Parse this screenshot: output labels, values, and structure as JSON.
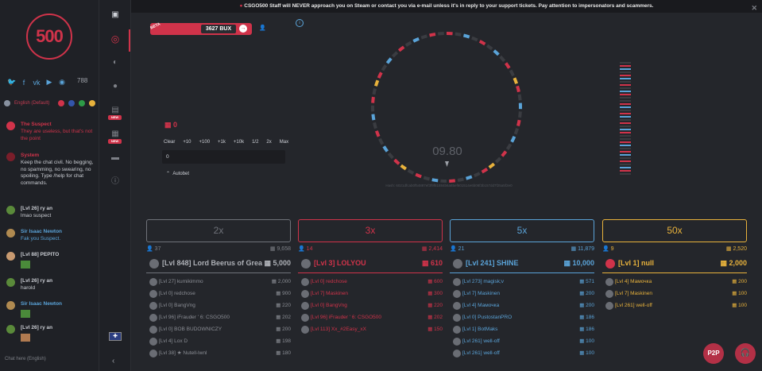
{
  "logo_text": "500",
  "banner": {
    "text": "CSGO500 Staff will NEVER approach you on Steam or contact you via e-mail unless it's in reply to your support tickets. Pay attention to impersonators and scammers."
  },
  "online_count": "788",
  "language": {
    "label": "English (Default)"
  },
  "chat": {
    "messages": [
      {
        "name": "The Suspect",
        "text": "They are useless, but that's not the point"
      },
      {
        "name": "System",
        "text": "Keep the chat civil. No begging, no spamming, no swearing, no spoiling. Type /help for chat commands."
      },
      {
        "name": "[Lvl 26] ry an",
        "text": "lmao suspect"
      },
      {
        "name": "Sir Isaac Newton",
        "text": "Fak you Suspect."
      },
      {
        "name": "[Lvl 88] PEPITO",
        "text": ""
      },
      {
        "name": "[Lvl 26] ry an",
        "text": "harold"
      },
      {
        "name": "Sir Isaac Newton",
        "text": ""
      },
      {
        "name": "[Lvl 26] ry an",
        "text": ""
      }
    ],
    "input_placeholder": "Chat here (English)"
  },
  "sidebar_badges": {
    "new1": "NEW",
    "new2": "NEW"
  },
  "balance": {
    "beta": "BETA",
    "value": "3627 BUX"
  },
  "bet": {
    "amount": "0",
    "buttons": [
      "Clear",
      "+10",
      "+100",
      "+1k",
      "+10k",
      "1/2",
      "2x",
      "Max"
    ],
    "input_value": "0",
    "autobet_label": "Autobet"
  },
  "wheel": {
    "timer": "09.80",
    "hash": "Hash: 6021dfcab0f54887ef3f9f81884b6a85ef601514e6b08f3b157dd7f25a5f2e0"
  },
  "columns": [
    {
      "label": "2x",
      "players": "37",
      "total": "9,658",
      "top_name": "[Lvl 848] Lord Beerus of Grea",
      "top_amount": "5,000",
      "rows": [
        [
          "[Lvl 27] kumikimmo",
          "2,000"
        ],
        [
          "[Lvl 0] redchose",
          "900"
        ],
        [
          "[Lvl 0] BangVng",
          "220"
        ],
        [
          "[Lvl 96] iFrauder ' 6: CSGO500",
          "202"
        ],
        [
          "[Lvl 0] BOB BUDOWNICZY",
          "200"
        ],
        [
          "[Lvl 4] Lox D",
          "198"
        ],
        [
          "[Lvl 38] ★ Nutell-lwnl",
          "180"
        ]
      ]
    },
    {
      "label": "3x",
      "players": "14",
      "total": "2,414",
      "top_name": "[Lvl 3] LOLYOU",
      "top_amount": "610",
      "rows": [
        [
          "[Lvl 0] redchose",
          "600"
        ],
        [
          "[Lvl 7] Maskinen",
          "300"
        ],
        [
          "[Lvl 0] BangVng",
          "220"
        ],
        [
          "[Lvl 96] iFrauder ' 6: CSGO500",
          "202"
        ],
        [
          "[Lvl 113] Xx_#2Easy_xX",
          "150"
        ]
      ]
    },
    {
      "label": "5x",
      "players": "21",
      "total": "11,879",
      "top_name": "[Lvl 241] SHINE",
      "top_amount": "10,000",
      "rows": [
        [
          "[Lvl 273] magisk;v",
          "571"
        ],
        [
          "[Lvl 7] Maskinen",
          "200"
        ],
        [
          "[Lvl 4] Мамочка",
          "200"
        ],
        [
          "[Lvl 0] PustostanPRO",
          "186"
        ],
        [
          "[Lvl 1] BotMaks",
          "186"
        ],
        [
          "[Lvl 261] well-off",
          "100"
        ],
        [
          "[Lvl 261] well-off",
          "100"
        ]
      ]
    },
    {
      "label": "50x",
      "players": "9",
      "total": "2,520",
      "top_name": "[Lvl 1] null",
      "top_amount": "2,000",
      "rows": [
        [
          "[Lvl 4] Мамочка",
          "200"
        ],
        [
          "[Lvl 7] Maskinen",
          "100"
        ],
        [
          "[Lvl 261] well-off",
          "100"
        ]
      ]
    }
  ],
  "buttons": {
    "p2p": "P2P"
  },
  "colors": {
    "red": "#d0334a",
    "blue": "#5aa3d8",
    "gold": "#e8b23c",
    "grey": "#6f7279"
  }
}
